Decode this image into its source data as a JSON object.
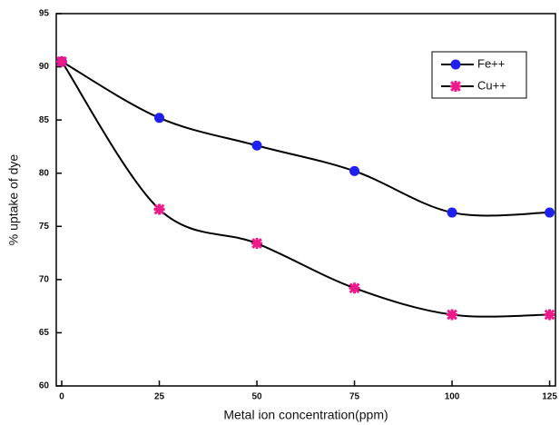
{
  "chart_data": {
    "type": "scatter",
    "x_label": "Metal ion concentration(ppm)",
    "y_label": "% uptake of dye",
    "x": [
      0,
      25,
      50,
      75,
      100,
      125
    ],
    "series": [
      {
        "name": "Fe++",
        "color": "#1f1fef",
        "marker": "circle",
        "values": [
          90.5,
          85.2,
          82.6,
          80.2,
          76.3,
          76.3
        ]
      },
      {
        "name": "Cu++",
        "color": "#ee1a8a",
        "marker": "star",
        "values": [
          90.5,
          76.6,
          73.4,
          69.2,
          66.7,
          66.7
        ]
      }
    ],
    "xlim": [
      -1.4,
      126.5
    ],
    "xticks": [
      0,
      25,
      50,
      75,
      100,
      125
    ],
    "ylim": [
      60,
      95
    ],
    "yticks": [
      60,
      65,
      70,
      75,
      80,
      85,
      90,
      95
    ],
    "legend": "upper right",
    "curve_color": "#000000"
  }
}
